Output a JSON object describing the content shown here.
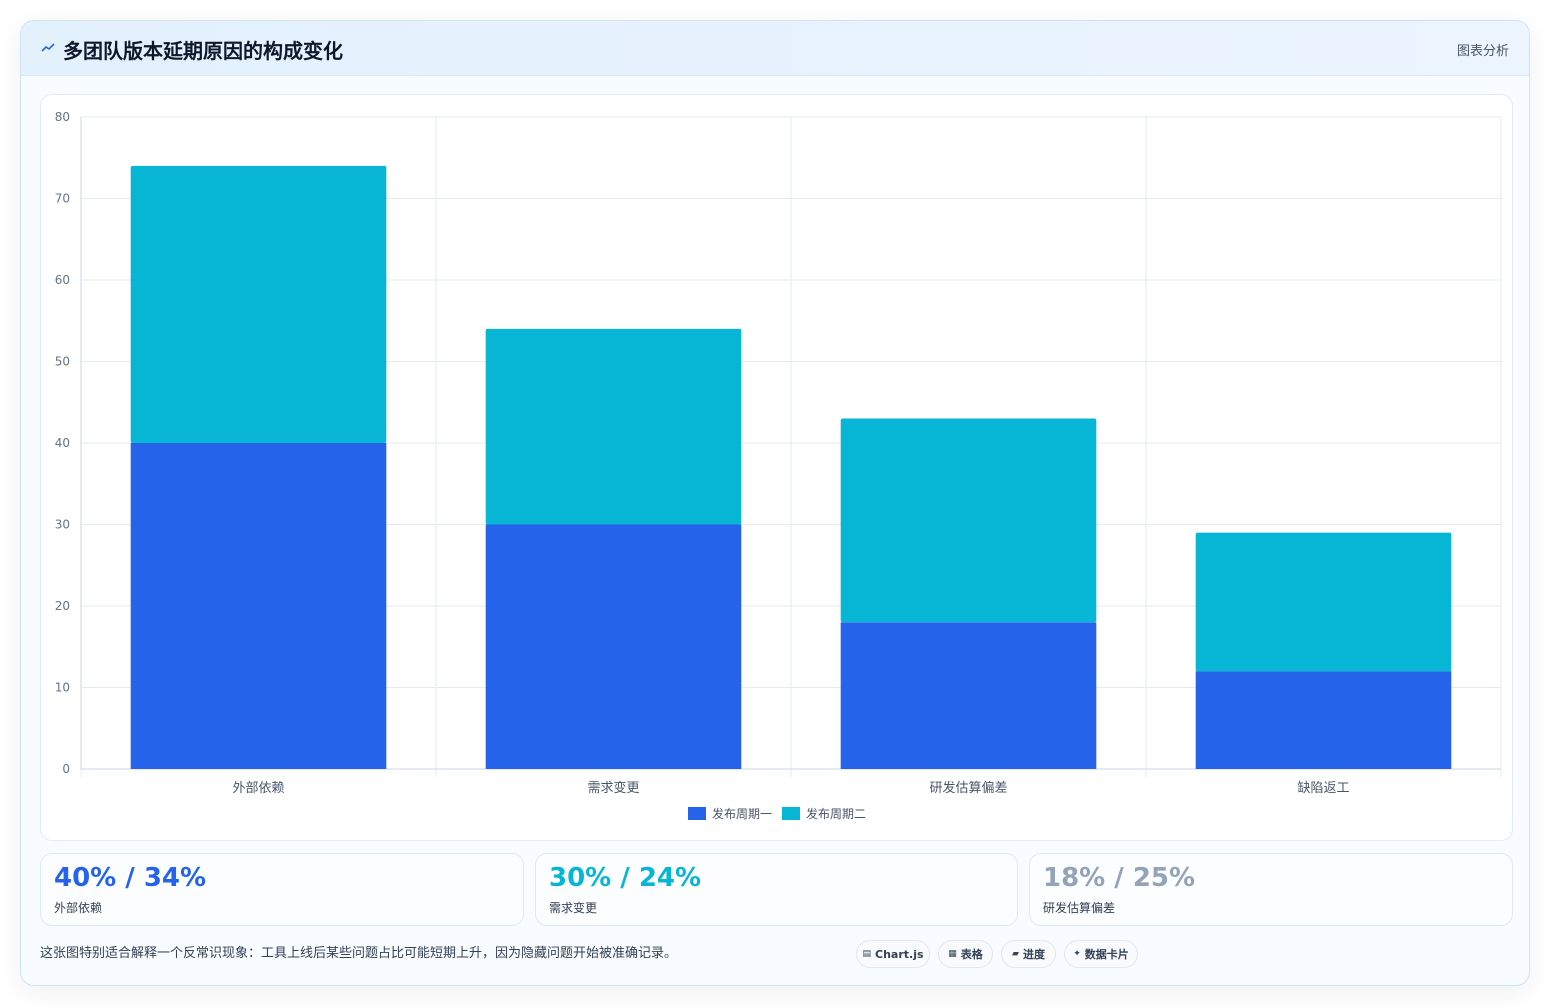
{
  "header": {
    "icon": "chart-icon",
    "title": "多团队版本延期原因的构成变化",
    "tag": "图表分析"
  },
  "chart_data": {
    "type": "bar",
    "stacked": true,
    "categories": [
      "外部依赖",
      "需求变更",
      "研发估算偏差",
      "缺陷返工"
    ],
    "series": [
      {
        "name": "发布周期一",
        "values": [
          40,
          30,
          18,
          12
        ],
        "color": "#2563eb"
      },
      {
        "name": "发布周期二",
        "values": [
          34,
          24,
          25,
          17
        ],
        "color": "#06b6d4"
      }
    ],
    "ylim": [
      0,
      80
    ],
    "yticks": [
      0,
      10,
      20,
      30,
      40,
      50,
      60,
      70,
      80
    ],
    "grid": true,
    "legend": "bottom",
    "title": "",
    "xlabel": "",
    "ylabel": ""
  },
  "stats": [
    {
      "value": "40% / 34%",
      "label": "外部依赖",
      "color": "#2563eb"
    },
    {
      "value": "30% / 24%",
      "label": "需求变更",
      "color": "#06b6d4"
    },
    {
      "value": "18% / 25%",
      "label": "研发估算偏差",
      "color": "#94a3b8"
    }
  ],
  "footer": {
    "note": "这张图特别适合解释一个反常识现象：工具上线后某些问题占比可能短期上升，因为隐藏问题开始被准确记录。",
    "chips": [
      {
        "icon": "▤",
        "label": "Chart.js"
      },
      {
        "icon": "▦",
        "label": "表格"
      },
      {
        "icon": "▰",
        "label": "进度"
      },
      {
        "icon": "✦",
        "label": "数据卡片"
      }
    ]
  }
}
